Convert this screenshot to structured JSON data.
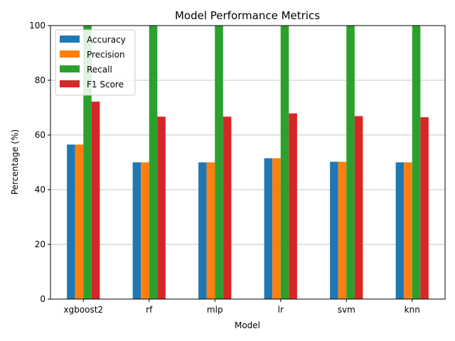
{
  "chart_data": {
    "type": "bar",
    "title": "Model Performance Metrics",
    "xlabel": "Model",
    "ylabel": "Percentage (%)",
    "categories": [
      "xgboost2",
      "rf",
      "mlp",
      "lr",
      "svm",
      "knn"
    ],
    "ylim": [
      0,
      100
    ],
    "yticks": [
      0,
      20,
      40,
      60,
      80,
      100
    ],
    "grid": "horizontal",
    "legend_position": "top-left",
    "series": [
      {
        "name": "Accuracy",
        "color": "#1f77b4",
        "values": [
          56.5,
          50.0,
          50.0,
          51.5,
          50.2,
          50.0
        ]
      },
      {
        "name": "Precision",
        "color": "#ff7f0e",
        "values": [
          56.5,
          50.0,
          50.0,
          51.5,
          50.2,
          50.0
        ]
      },
      {
        "name": "Recall",
        "color": "#2ca02c",
        "values": [
          100,
          100,
          100,
          100,
          100,
          100
        ]
      },
      {
        "name": "F1 Score",
        "color": "#d62728",
        "values": [
          72.2,
          66.7,
          66.7,
          67.9,
          66.9,
          66.5
        ]
      }
    ]
  }
}
